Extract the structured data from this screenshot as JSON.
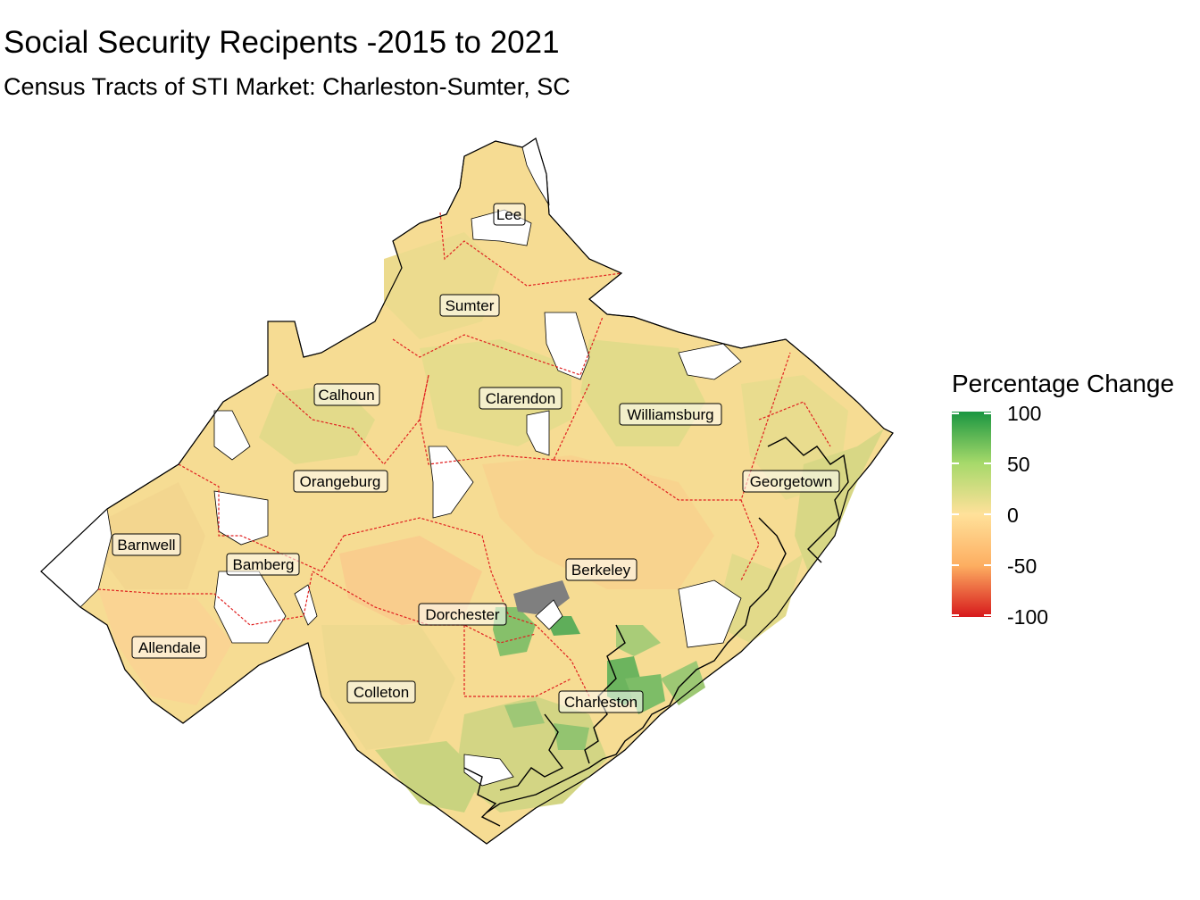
{
  "title": "Social Security Recipents -2015 to 2021",
  "subtitle": "Census Tracts of STI Market: Charleston-Sumter, SC",
  "legend": {
    "title": "Percentage Change",
    "ticks": [
      "100",
      "50",
      "0",
      "-50",
      "-100"
    ],
    "colors": {
      "high": "#1a9641",
      "mid_high": "#a6d96a",
      "mid": "#ffe19a",
      "mid_low": "#fdae61",
      "low": "#d7191c",
      "missing": "#7f7f7f"
    }
  },
  "counties": {
    "lee": "Lee",
    "sumter": "Sumter",
    "calhoun": "Calhoun",
    "clarendon": "Clarendon",
    "williamsburg": "Williamsburg",
    "orangeburg": "Orangeburg",
    "georgetown": "Georgetown",
    "barnwell": "Barnwell",
    "bamberg": "Bamberg",
    "berkeley": "Berkeley",
    "dorchester": "Dorchester",
    "allendale": "Allendale",
    "colleton": "Colleton",
    "charleston": "Charleston"
  }
}
